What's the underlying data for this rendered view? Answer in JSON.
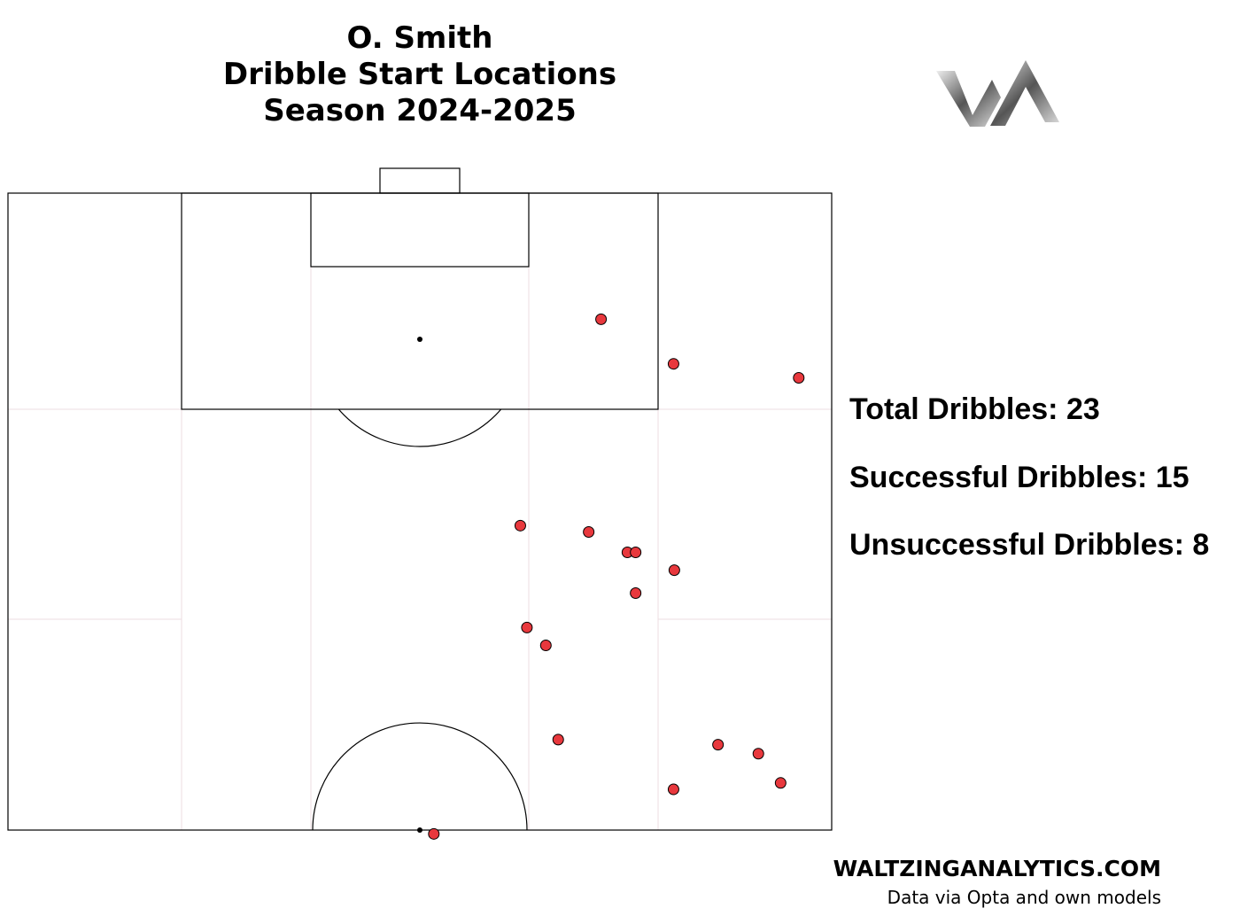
{
  "chart_data": {
    "type": "scatter",
    "title": [
      "O. Smith",
      "Dribble Start Locations",
      "Season 2024-2025"
    ],
    "x": [
      72.0,
      80.8,
      96.0,
      62.2,
      70.5,
      75.2,
      76.2,
      80.9,
      76.2,
      63.0,
      65.3,
      66.8,
      86.2,
      91.1,
      93.8,
      80.8,
      51.7
    ],
    "y": [
      90.1,
      86.6,
      85.5,
      73.9,
      73.4,
      71.8,
      71.8,
      70.4,
      68.6,
      65.9,
      64.5,
      57.1,
      56.7,
      56.0,
      53.7,
      53.2,
      49.7
    ],
    "xlim": [
      0,
      100
    ],
    "ylim": [
      50,
      100
    ],
    "color": "#e8383d",
    "stats": [
      "Total Dribbles: 23",
      "Successful Dribbles: 15",
      "Unsuccessful Dribbles: 8"
    ],
    "footer": [
      "WALTZINGANALYTICS.COM",
      "Data via Opta and own models"
    ]
  }
}
